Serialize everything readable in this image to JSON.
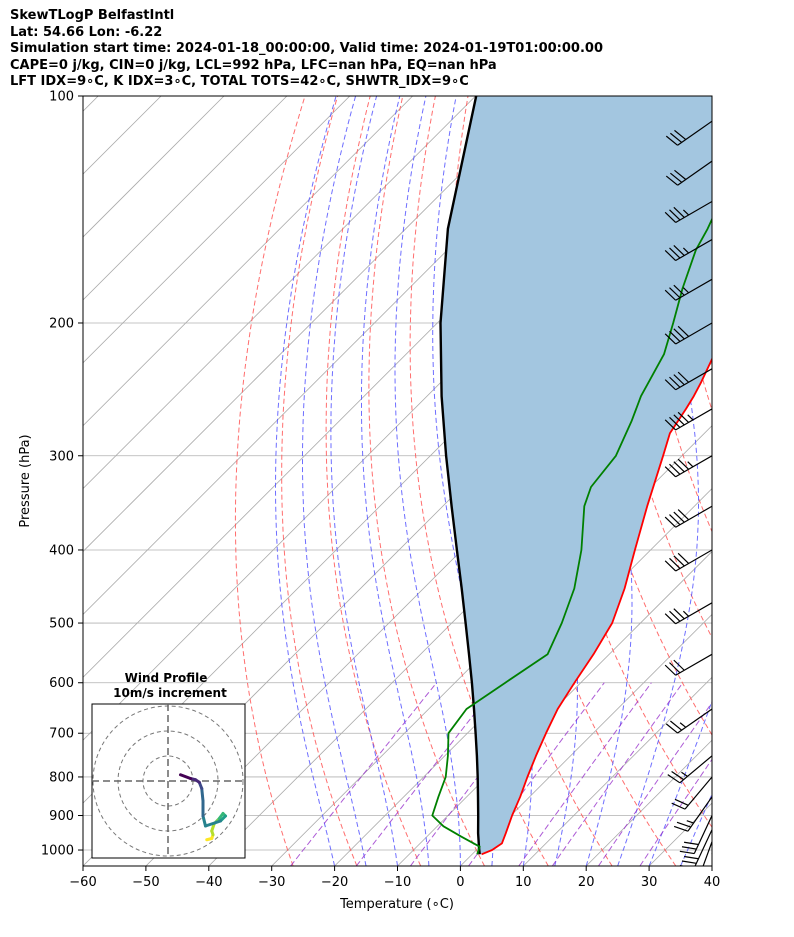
{
  "header": {
    "line1": "SkewTLogP BelfastIntl",
    "line2": "Lat: 54.66   Lon: -6.22",
    "line3": "Simulation start time: 2024-01-18_00:00:00, Valid time: 2024-01-19T01:00:00.00",
    "line4": "CAPE=0 j/kg, CIN=0 j/kg, LCL=992 hPa, LFC=nan hPa, EQ=nan hPa",
    "line5": "LFT IDX=9∘C, K IDX=3∘C, TOTAL TOTS=42∘C, SHWTR_IDX=9∘C"
  },
  "chart_data": {
    "type": "line",
    "xlabel": "Temperature (∘C)",
    "ylabel": "Pressure (hPa)",
    "xlim": [
      -60,
      40
    ],
    "ylim": [
      1050,
      100
    ],
    "y_scale": "log",
    "x_ticks": [
      -60,
      -50,
      -40,
      -30,
      -20,
      -10,
      0,
      10,
      20,
      30,
      40
    ],
    "x_tick_labels": [
      "−60",
      "−50",
      "−40",
      "−30",
      "−20",
      "−10",
      "0",
      "10",
      "20",
      "30",
      "40"
    ],
    "y_ticks": [
      1000,
      900,
      800,
      700,
      600,
      500,
      400,
      300,
      200,
      100
    ],
    "grid": true,
    "colors": {
      "temperature": "#ff0000",
      "dewpoint": "#008000",
      "parcel": "#000000",
      "fill": "#a3c6e0",
      "dry_adiabats": "#ff5555",
      "moist_adiabats": "#5555ff",
      "mixing_ratio": "#9932cc",
      "isotherms": "#aaaaaa"
    },
    "temperature": [
      [
        1013,
        1.5
      ],
      [
        1000,
        2.5
      ],
      [
        980,
        3.0
      ],
      [
        950,
        2.0
      ],
      [
        900,
        0.2
      ],
      [
        850,
        -1.5
      ],
      [
        800,
        -3.5
      ],
      [
        750,
        -5.5
      ],
      [
        700,
        -7.5
      ],
      [
        650,
        -9.5
      ],
      [
        600,
        -11.0
      ],
      [
        550,
        -12.5
      ],
      [
        500,
        -14.5
      ],
      [
        450,
        -18.0
      ],
      [
        400,
        -22.5
      ],
      [
        350,
        -27.5
      ],
      [
        300,
        -33.0
      ],
      [
        280,
        -35.5
      ],
      [
        260,
        -36.8
      ],
      [
        250,
        -37.6
      ],
      [
        240,
        -38.6
      ],
      [
        220,
        -41.0
      ],
      [
        200,
        -44.5
      ],
      [
        180,
        -47.8
      ],
      [
        160,
        -50.5
      ],
      [
        150,
        -52.0
      ],
      [
        130,
        -55.0
      ],
      [
        110,
        -58.0
      ],
      [
        100,
        -59.8
      ]
    ],
    "dewpoint": [
      [
        1013,
        0.8
      ],
      [
        990,
        0.0
      ],
      [
        960,
        -4.5
      ],
      [
        930,
        -9.0
      ],
      [
        900,
        -12.5
      ],
      [
        850,
        -14.5
      ],
      [
        800,
        -16.5
      ],
      [
        750,
        -19.5
      ],
      [
        700,
        -23.0
      ],
      [
        650,
        -24.0
      ],
      [
        600,
        -22.0
      ],
      [
        550,
        -19.8
      ],
      [
        500,
        -22.5
      ],
      [
        450,
        -26.0
      ],
      [
        400,
        -31.0
      ],
      [
        350,
        -37.5
      ],
      [
        330,
        -39.5
      ],
      [
        300,
        -40.5
      ],
      [
        270,
        -43.5
      ],
      [
        250,
        -46.0
      ],
      [
        220,
        -49.0
      ],
      [
        200,
        -52.5
      ],
      [
        180,
        -56.5
      ],
      [
        160,
        -60.5
      ],
      [
        150,
        -62.0
      ],
      [
        130,
        -66.0
      ],
      [
        110,
        -70.0
      ],
      [
        100,
        -71.5
      ]
    ],
    "parcel": [
      [
        1013,
        1.2
      ],
      [
        992,
        0.0
      ],
      [
        950,
        -2.4
      ],
      [
        900,
        -5.2
      ],
      [
        850,
        -8.2
      ],
      [
        800,
        -11.4
      ],
      [
        750,
        -14.9
      ],
      [
        700,
        -18.7
      ],
      [
        650,
        -22.8
      ],
      [
        600,
        -27.3
      ],
      [
        550,
        -32.3
      ],
      [
        500,
        -37.8
      ],
      [
        450,
        -43.9
      ],
      [
        400,
        -50.8
      ],
      [
        350,
        -58.6
      ],
      [
        300,
        -67.5
      ],
      [
        250,
        -77.7
      ],
      [
        200,
        -89.5
      ],
      [
        150,
        -103.3
      ],
      [
        100,
        -119.9
      ]
    ],
    "winds": [
      {
        "p": 1010,
        "speed_kt": 15,
        "dir_deg": 175
      },
      {
        "p": 975,
        "speed_kt": 25,
        "dir_deg": 200
      },
      {
        "p": 940,
        "speed_kt": 30,
        "dir_deg": 205
      },
      {
        "p": 900,
        "speed_kt": 30,
        "dir_deg": 205
      },
      {
        "p": 850,
        "speed_kt": 25,
        "dir_deg": 215
      },
      {
        "p": 800,
        "speed_kt": 20,
        "dir_deg": 220
      },
      {
        "p": 750,
        "speed_kt": 25,
        "dir_deg": 230
      },
      {
        "p": 650,
        "speed_kt": 25,
        "dir_deg": 235
      },
      {
        "p": 550,
        "speed_kt": 30,
        "dir_deg": 240
      },
      {
        "p": 470,
        "speed_kt": 35,
        "dir_deg": 240
      },
      {
        "p": 400,
        "speed_kt": 40,
        "dir_deg": 240
      },
      {
        "p": 350,
        "speed_kt": 40,
        "dir_deg": 240
      },
      {
        "p": 300,
        "speed_kt": 45,
        "dir_deg": 240
      },
      {
        "p": 260,
        "speed_kt": 45,
        "dir_deg": 240
      },
      {
        "p": 230,
        "speed_kt": 40,
        "dir_deg": 240
      },
      {
        "p": 200,
        "speed_kt": 40,
        "dir_deg": 240
      },
      {
        "p": 175,
        "speed_kt": 35,
        "dir_deg": 240
      },
      {
        "p": 155,
        "speed_kt": 35,
        "dir_deg": 240
      },
      {
        "p": 138,
        "speed_kt": 35,
        "dir_deg": 240
      },
      {
        "p": 122,
        "speed_kt": 30,
        "dir_deg": 235
      },
      {
        "p": 108,
        "speed_kt": 30,
        "dir_deg": 235
      }
    ],
    "hodograph": {
      "title_line1": "Wind Profile",
      "title_line2": "10m/s increment",
      "ring_step_ms": 10,
      "rings": 3,
      "points_ms": [
        [
          15.5,
          -23.5
        ],
        [
          17.5,
          -23.0
        ],
        [
          18.0,
          -21.5
        ],
        [
          17.5,
          -20.0
        ],
        [
          18.5,
          -17.0
        ],
        [
          20.5,
          -15.0
        ],
        [
          22.0,
          -13.0
        ],
        [
          23.0,
          -14.0
        ],
        [
          21.0,
          -16.0
        ],
        [
          15.0,
          -18.0
        ],
        [
          14.0,
          -14.0
        ],
        [
          14.0,
          -8.0
        ],
        [
          13.5,
          -3.0
        ],
        [
          12.5,
          -0.5
        ],
        [
          11.0,
          0.5
        ],
        [
          9.0,
          1.0
        ],
        [
          5.0,
          2.5
        ]
      ]
    }
  }
}
